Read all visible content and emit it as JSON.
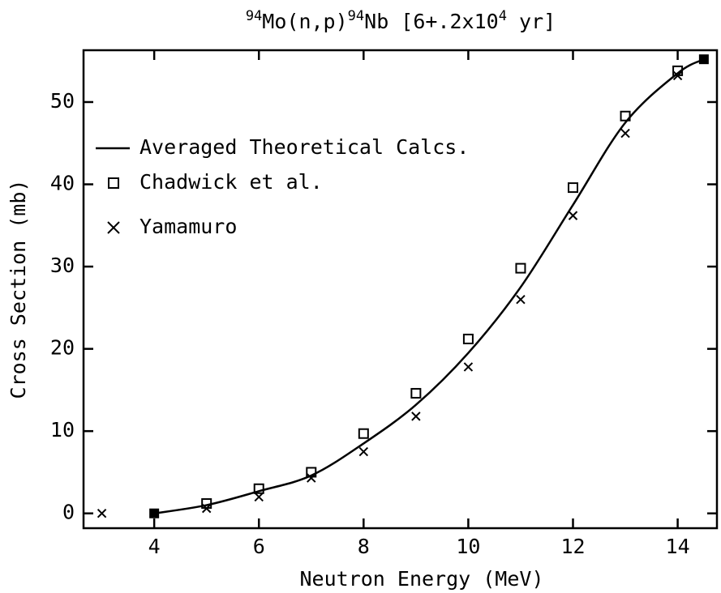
{
  "chart_data": {
    "type": "line",
    "title_parts": [
      "94",
      "Mo(n,p)",
      "94",
      "Nb [6+.2x10",
      "4",
      " yr]"
    ],
    "x_label": "Neutron Energy (MeV)",
    "y_label": "Cross Section (mb)",
    "xlim": [
      2.65,
      14.75
    ],
    "ylim": [
      -1.8,
      56.3
    ],
    "xticks": [
      4,
      6,
      8,
      10,
      12,
      14
    ],
    "yticks": [
      0,
      10,
      20,
      30,
      40,
      50
    ],
    "series": [
      {
        "name": "Averaged Theoretical Calcs.",
        "kind": "line",
        "color": "#000000",
        "x": [
          4,
          5,
          6,
          7,
          8,
          9,
          10,
          11,
          12,
          13,
          14,
          14.5
        ],
        "values": [
          0,
          1,
          2.7,
          4.6,
          8.5,
          13.2,
          19.5,
          27.5,
          37.5,
          47.5,
          53.5,
          55.2
        ]
      },
      {
        "name": "Chadwick et al.",
        "kind": "square",
        "color": "#000000",
        "x": [
          5,
          6,
          7,
          8,
          9,
          10,
          11,
          12,
          13,
          14
        ],
        "values": [
          1.2,
          3.0,
          5.0,
          9.7,
          14.6,
          21.2,
          29.8,
          39.6,
          48.3,
          53.8
        ]
      },
      {
        "name": "Yamamuro",
        "kind": "cross",
        "color": "#000000",
        "x": [
          3,
          5,
          6,
          7,
          8,
          9,
          10,
          11,
          12,
          13,
          14
        ],
        "values": [
          0,
          0.6,
          2.0,
          4.3,
          7.5,
          11.8,
          17.8,
          26.0,
          36.2,
          46.2,
          53.2
        ]
      }
    ]
  }
}
